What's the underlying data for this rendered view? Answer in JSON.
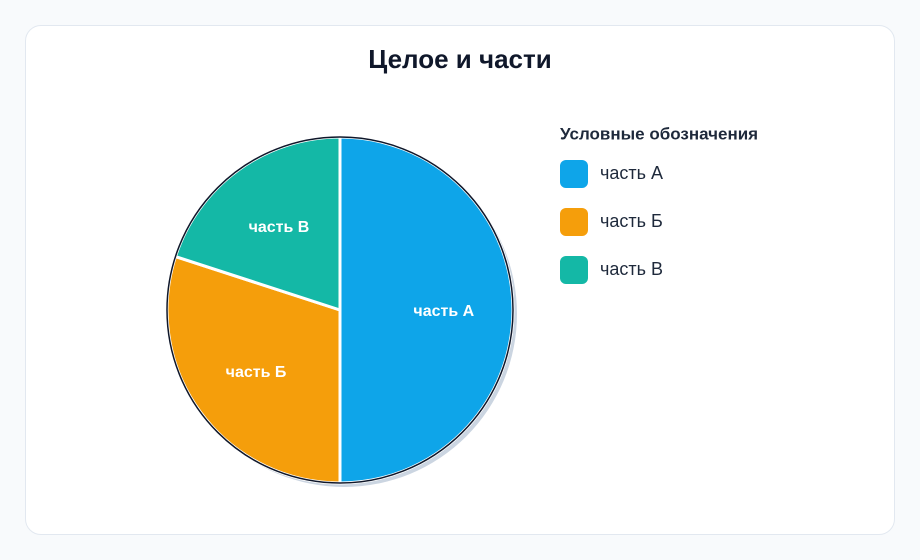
{
  "chart_data": {
    "type": "pie",
    "title": "Целое и части",
    "legend_title": "Условные обозначения",
    "categories": [
      "часть А",
      "часть Б",
      "часть В"
    ],
    "values": [
      50,
      30,
      20
    ],
    "colors": [
      "#0ea5e9",
      "#f59e0b",
      "#14b8a6"
    ]
  }
}
